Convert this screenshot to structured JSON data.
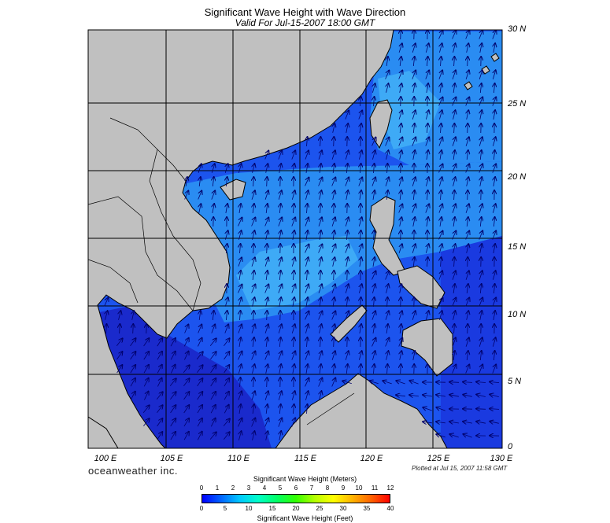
{
  "header": {
    "title": "Significant Wave Height with Wave Direction",
    "subtitle": "Valid For Jul-15-2007 18:00 GMT"
  },
  "map": {
    "latitude_labels": [
      "30 N",
      "25 N",
      "20 N",
      "15 N",
      "10 N",
      "5 N",
      "0"
    ],
    "longitude_labels": [
      "100 E",
      "105 E",
      "110 E",
      "115 E",
      "120 E",
      "125 E",
      "130 E"
    ],
    "colors": {
      "land": "#c0c0c0",
      "ocean_dark": "#1a2acc",
      "ocean_mid": "#1c54ee",
      "ocean_light": "#2a8cf2",
      "ocean_very_light": "#3eaaf6",
      "arrow": "#00006a",
      "grid": "#000000"
    },
    "wave_direction": "northeast"
  },
  "footer": {
    "brand": "oceanweather inc.",
    "plotted": "Plotted at Jul 15, 2007 11:58 GMT"
  },
  "legend": {
    "title_meters": "Significant Wave Height (Meters)",
    "title_feet": "Significant Wave Height (Feet)",
    "meter_ticks": [
      "0",
      "1",
      "2",
      "3",
      "4",
      "5",
      "6",
      "7",
      "8",
      "9",
      "10",
      "11",
      "12"
    ],
    "feet_ticks": [
      "0",
      "5",
      "10",
      "15",
      "20",
      "25",
      "30",
      "35",
      "40"
    ],
    "gradient": [
      "#0000ff",
      "#0064ff",
      "#00c8ff",
      "#00ffc8",
      "#00ff64",
      "#32ff00",
      "#b4ff00",
      "#ffff00",
      "#ffb400",
      "#ff6400",
      "#ff0000"
    ]
  }
}
